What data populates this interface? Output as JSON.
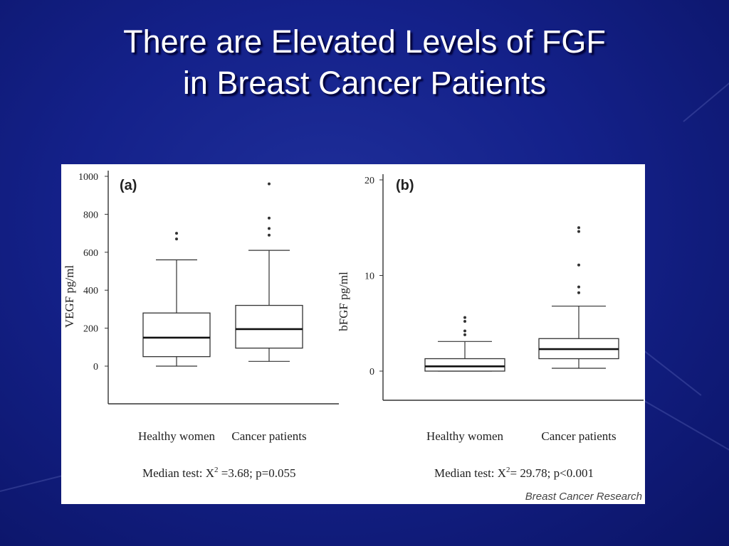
{
  "slide": {
    "title_line1": "There are Elevated Levels of FGF",
    "title_line2": "in Breast Cancer Patients"
  },
  "figure": {
    "credit": "Breast Cancer Research"
  },
  "chart_data": [
    {
      "type": "box",
      "panel_label": "(a)",
      "ylabel": "VEGF pg/ml",
      "ylim": [
        0,
        1000
      ],
      "yticks": [
        "0",
        "200",
        "400",
        "600",
        "800",
        "1000"
      ],
      "categories": [
        "Healthy women",
        "Cancer patients"
      ],
      "boxes": [
        {
          "whisker_low": 0,
          "q1": 50,
          "median": 150,
          "q3": 280,
          "whisker_high": 560,
          "outliers": [
            700,
            670
          ]
        },
        {
          "whisker_low": 25,
          "q1": 95,
          "median": 195,
          "q3": 320,
          "whisker_high": 610,
          "outliers": [
            960,
            780,
            725,
            690
          ]
        }
      ],
      "test_prefix": "Median test: X",
      "test_sup": "2",
      "test_suffix": " =3.68; p=0.055"
    },
    {
      "type": "box",
      "panel_label": "(b)",
      "ylabel": "bFGF pg/ml",
      "ylim": [
        0,
        20
      ],
      "yticks": [
        "0",
        "10",
        "20"
      ],
      "categories": [
        "Healthy women",
        "Cancer patients"
      ],
      "boxes": [
        {
          "whisker_low": 0,
          "q1": 0,
          "median": 0.5,
          "q3": 1.3,
          "whisker_high": 3.1,
          "outliers": [
            5.6,
            5.2,
            4.2,
            3.8
          ]
        },
        {
          "whisker_low": 0.3,
          "q1": 1.3,
          "median": 2.3,
          "q3": 3.4,
          "whisker_high": 6.8,
          "outliers": [
            15,
            14.6,
            11.1,
            8.8,
            8.2
          ]
        }
      ],
      "test_prefix": "Median test: X",
      "test_sup": "2",
      "test_suffix": "= 29.78; p<0.001"
    }
  ]
}
